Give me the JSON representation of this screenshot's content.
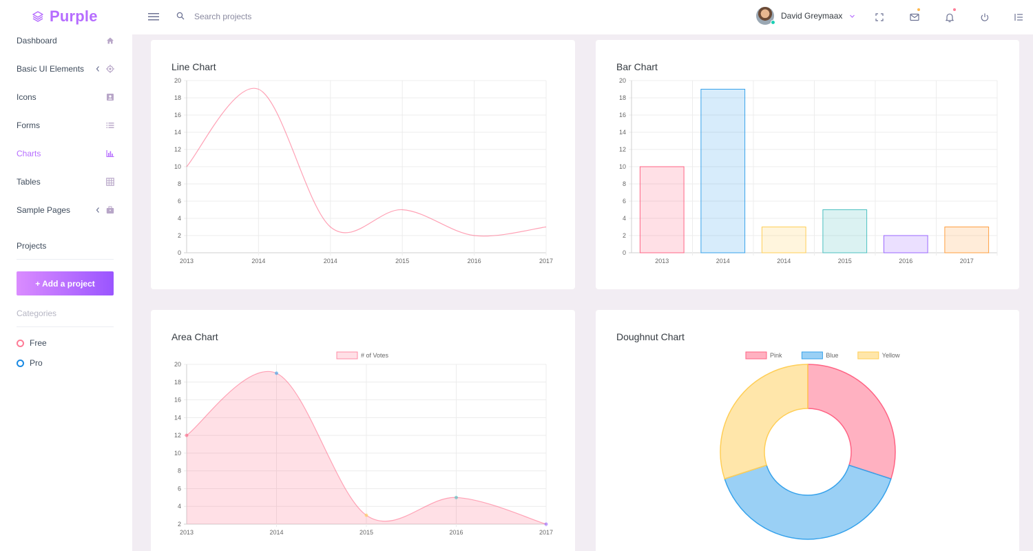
{
  "brand": {
    "name": "Purple"
  },
  "search": {
    "placeholder": "Search projects"
  },
  "profile": {
    "name": "David Greymaax"
  },
  "sidebar": {
    "items": [
      {
        "label": "Dashboard",
        "icon": "home-icon",
        "has_chevron": false,
        "active": false
      },
      {
        "label": "Basic UI Elements",
        "icon": "crosshairs-icon",
        "has_chevron": true,
        "active": false
      },
      {
        "label": "Icons",
        "icon": "contacts-icon",
        "has_chevron": false,
        "active": false
      },
      {
        "label": "Forms",
        "icon": "list-icon",
        "has_chevron": false,
        "active": false
      },
      {
        "label": "Charts",
        "icon": "bar-chart-icon",
        "has_chevron": false,
        "active": true
      },
      {
        "label": "Tables",
        "icon": "table-icon",
        "has_chevron": false,
        "active": false
      },
      {
        "label": "Sample Pages",
        "icon": "briefcase-icon",
        "has_chevron": true,
        "active": false
      }
    ],
    "projects_label": "Projects",
    "add_project_label": "+ Add a project",
    "categories_label": "Categories",
    "categories": [
      {
        "label": "Free",
        "color": "#fe7c96"
      },
      {
        "label": "Pro",
        "color": "#198ae3"
      }
    ]
  },
  "colors": {
    "accent": "#b66dff",
    "pink": "#ff6384",
    "blue": "#36a2eb",
    "yellow": "#ffce56",
    "teal": "#4bc0c0",
    "purple": "#9966ff",
    "orange": "#ff9f40"
  },
  "cards": {
    "line_title": "Line Chart",
    "bar_title": "Bar Chart",
    "area_title": "Area Chart",
    "doughnut_title": "Doughnut Chart"
  },
  "chart_data": [
    {
      "type": "line",
      "title": "Line Chart",
      "categories": [
        "2013",
        "2014",
        "2014",
        "2015",
        "2016",
        "2017"
      ],
      "series": [
        {
          "values": [
            10,
            19,
            3,
            5,
            2,
            3
          ]
        }
      ],
      "ylim": [
        0,
        20
      ],
      "yticks": [
        0,
        2,
        4,
        6,
        8,
        10,
        12,
        14,
        16,
        18,
        20
      ],
      "grid": true,
      "legend": "none"
    },
    {
      "type": "bar",
      "title": "Bar Chart",
      "categories": [
        "2013",
        "2014",
        "2014",
        "2015",
        "2016",
        "2017"
      ],
      "series": [
        {
          "values": [
            10,
            19,
            3,
            5,
            2,
            3
          ]
        }
      ],
      "bar_colors": [
        "#ff6384",
        "#36a2eb",
        "#ffce56",
        "#4bc0c0",
        "#9966ff",
        "#ff9f40"
      ],
      "ylim": [
        0,
        20
      ],
      "yticks": [
        0,
        2,
        4,
        6,
        8,
        10,
        12,
        14,
        16,
        18,
        20
      ],
      "grid": true,
      "legend": "none"
    },
    {
      "type": "area",
      "title": "Area Chart",
      "categories": [
        "2013",
        "2014",
        "2015",
        "2016",
        "2017"
      ],
      "series": [
        {
          "name": "# of Votes",
          "values": [
            12,
            19,
            3,
            5,
            2
          ]
        }
      ],
      "point_colors": [
        "#ff6384",
        "#36a2eb",
        "#ffce56",
        "#4bc0c0",
        "#9966ff"
      ],
      "ylim": [
        2,
        20
      ],
      "yticks": [
        2,
        4,
        6,
        8,
        10,
        12,
        14,
        16,
        18,
        20
      ],
      "grid": true,
      "legend": "top"
    },
    {
      "type": "pie",
      "title": "Doughnut Chart",
      "labels": [
        "Pink",
        "Blue",
        "Yellow"
      ],
      "values": [
        30,
        40,
        30
      ],
      "slice_colors": [
        "#ff6384",
        "#36a2eb",
        "#ffce56"
      ],
      "legend": "top"
    }
  ]
}
